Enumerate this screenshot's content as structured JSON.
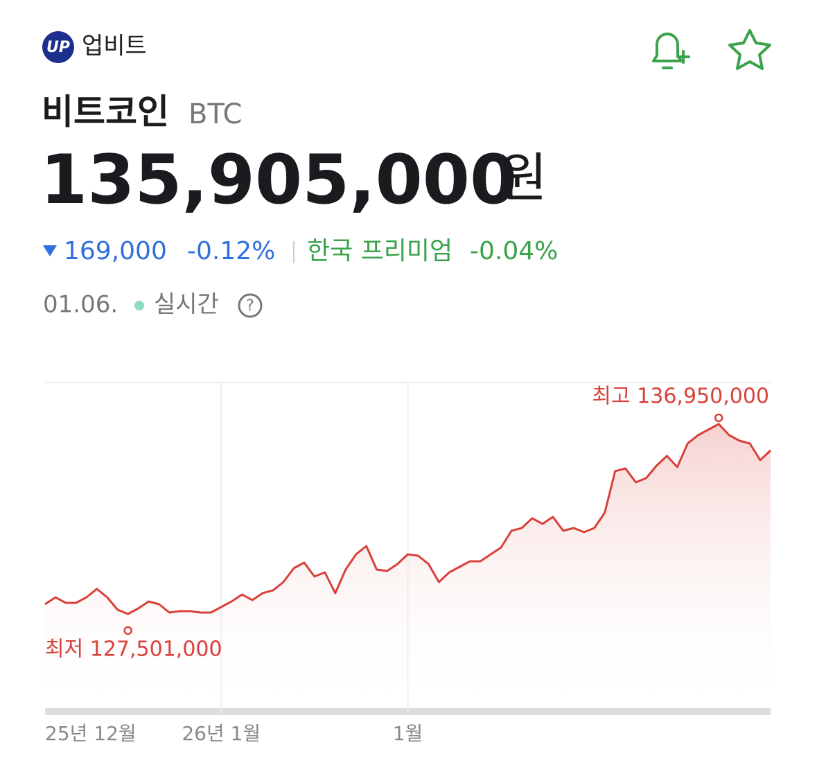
{
  "header": {
    "brand": "업비트",
    "name": "비트코인",
    "symbol": "BTC",
    "price": "135,905,000",
    "unit": "원",
    "change": "169,000",
    "change_pct": "-0.12%",
    "premium_label": "한국 프리미엄",
    "premium": "-0.04%",
    "date": "01.06.",
    "realtime": "실시간"
  },
  "chart_data": {
    "type": "line",
    "color": "#d9403a",
    "ylim": [
      122535000,
      139019000
    ],
    "xlim": [
      0,
      70
    ],
    "xticks": [
      {
        "value": 0,
        "label": "25년 12월"
      },
      {
        "value": 17,
        "label": "26년 1월"
      },
      {
        "value": 35,
        "label": "1월"
      }
    ],
    "series": [
      {
        "values": [
          127984000,
          128329000,
          128053000,
          128053000,
          128329000,
          128743000,
          128329000,
          127708000,
          127501000,
          127777000,
          128122000,
          127984000,
          127570000,
          127639000,
          127639000,
          127570000,
          127570000,
          127846000,
          128122000,
          128467000,
          128191000,
          128536000,
          128674000,
          129087000,
          129777000,
          130053000,
          129363000,
          129570000,
          128536000,
          129708000,
          130467000,
          130881000,
          129708000,
          129639000,
          129984000,
          130467000,
          130398000,
          129984000,
          129087000,
          129570000,
          129846000,
          130122000,
          130122000,
          130467000,
          130812000,
          131639000,
          131777000,
          132260000,
          131984000,
          132329000,
          131639000,
          131777000,
          131570000,
          131777000,
          132536000,
          134605000,
          134743000,
          134053000,
          134260000,
          134881000,
          135364000,
          134812000,
          135984000,
          136398000,
          136674000,
          136950000,
          136398000,
          136122000,
          135984000,
          135157000,
          135640000
        ]
      }
    ],
    "annotations": [
      {
        "text": "최고 136,950,000",
        "index": 65,
        "value": 136950000
      },
      {
        "text": "최저 127,501,000",
        "index": 8,
        "value": 127501000
      }
    ]
  }
}
